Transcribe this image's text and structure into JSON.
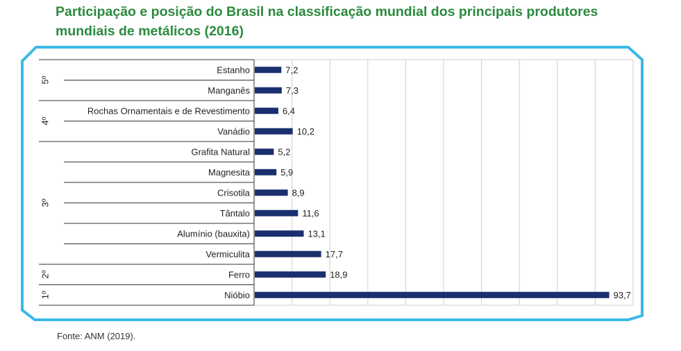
{
  "title": "Participação e posição do Brasil na classificação mundial dos principais produtores mundiais de metálicos (2016)",
  "source": "Fonte: ANM (2019).",
  "colors": {
    "bar": "#1a2f6e",
    "frame": "#3cb9e6",
    "title": "#2b8a3e",
    "grid": "#d0d0d0"
  },
  "chart_data": {
    "type": "bar",
    "orientation": "horizontal",
    "categories": [
      "Estanho",
      "Manganês",
      "Rochas Ornamentais e de Revestimento",
      "Vanádio",
      "Grafita Natural",
      "Magnesita",
      "Crisotila",
      "Tântalo",
      "Alumínio (bauxita)",
      "Vermiculita",
      "Ferro",
      "Nióbio"
    ],
    "values": [
      7.2,
      7.3,
      6.4,
      10.2,
      5.2,
      5.9,
      8.9,
      11.6,
      13.1,
      17.7,
      18.9,
      93.7
    ],
    "value_labels": [
      "7,2",
      "7,3",
      "6,4",
      "10,2",
      "5,2",
      "5,9",
      "8,9",
      "11,6",
      "13,1",
      "17,7",
      "18,9",
      "93,7"
    ],
    "groups": [
      {
        "label": "5º",
        "members": [
          "Estanho",
          "Manganês"
        ]
      },
      {
        "label": "4º",
        "members": [
          "Rochas Ornamentais e de Revestimento",
          "Vanádio"
        ]
      },
      {
        "label": "3º",
        "members": [
          "Grafita Natural",
          "Magnesita",
          "Crisotila",
          "Tântalo",
          "Alumínio (bauxita)",
          "Vermiculita"
        ]
      },
      {
        "label": "2º",
        "members": [
          "Ferro"
        ]
      },
      {
        "label": "1º",
        "members": [
          "Nióbio"
        ]
      }
    ],
    "xlim": [
      0,
      100
    ],
    "grid": true,
    "title": "",
    "xlabel": "",
    "ylabel": ""
  }
}
